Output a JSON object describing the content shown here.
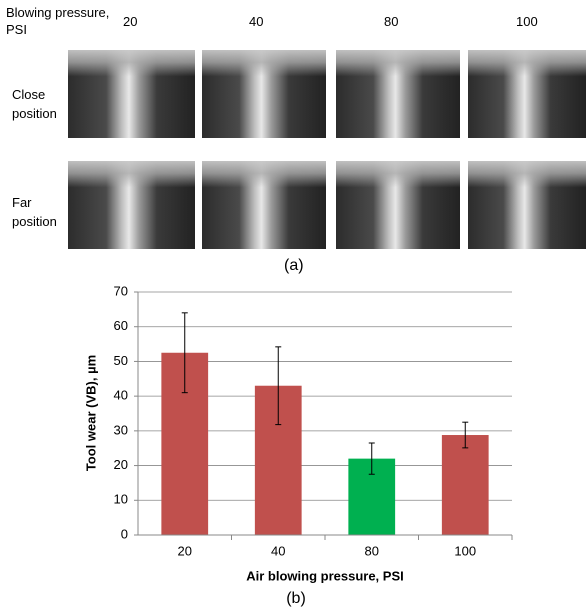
{
  "panel_a": {
    "header": "Blowing pressure, PSI",
    "columns": [
      "20",
      "40",
      "80",
      "100"
    ],
    "rows": [
      "Close position",
      "Far position"
    ],
    "caption": "(a)"
  },
  "chart_data": {
    "type": "bar",
    "caption": "(b)",
    "xlabel": "Air blowing pressure, PSI",
    "ylabel": "Tool wear (VB), µm",
    "categories": [
      "20",
      "40",
      "80",
      "100"
    ],
    "values": [
      52.5,
      43,
      22,
      28.8
    ],
    "errors": [
      11.5,
      11.2,
      4.5,
      3.7
    ],
    "colors": [
      "#c0504d",
      "#c0504d",
      "#00b050",
      "#c0504d"
    ],
    "ylim": [
      0,
      70
    ],
    "yticks": [
      0,
      10,
      20,
      30,
      40,
      50,
      60,
      70
    ],
    "grid": true
  }
}
